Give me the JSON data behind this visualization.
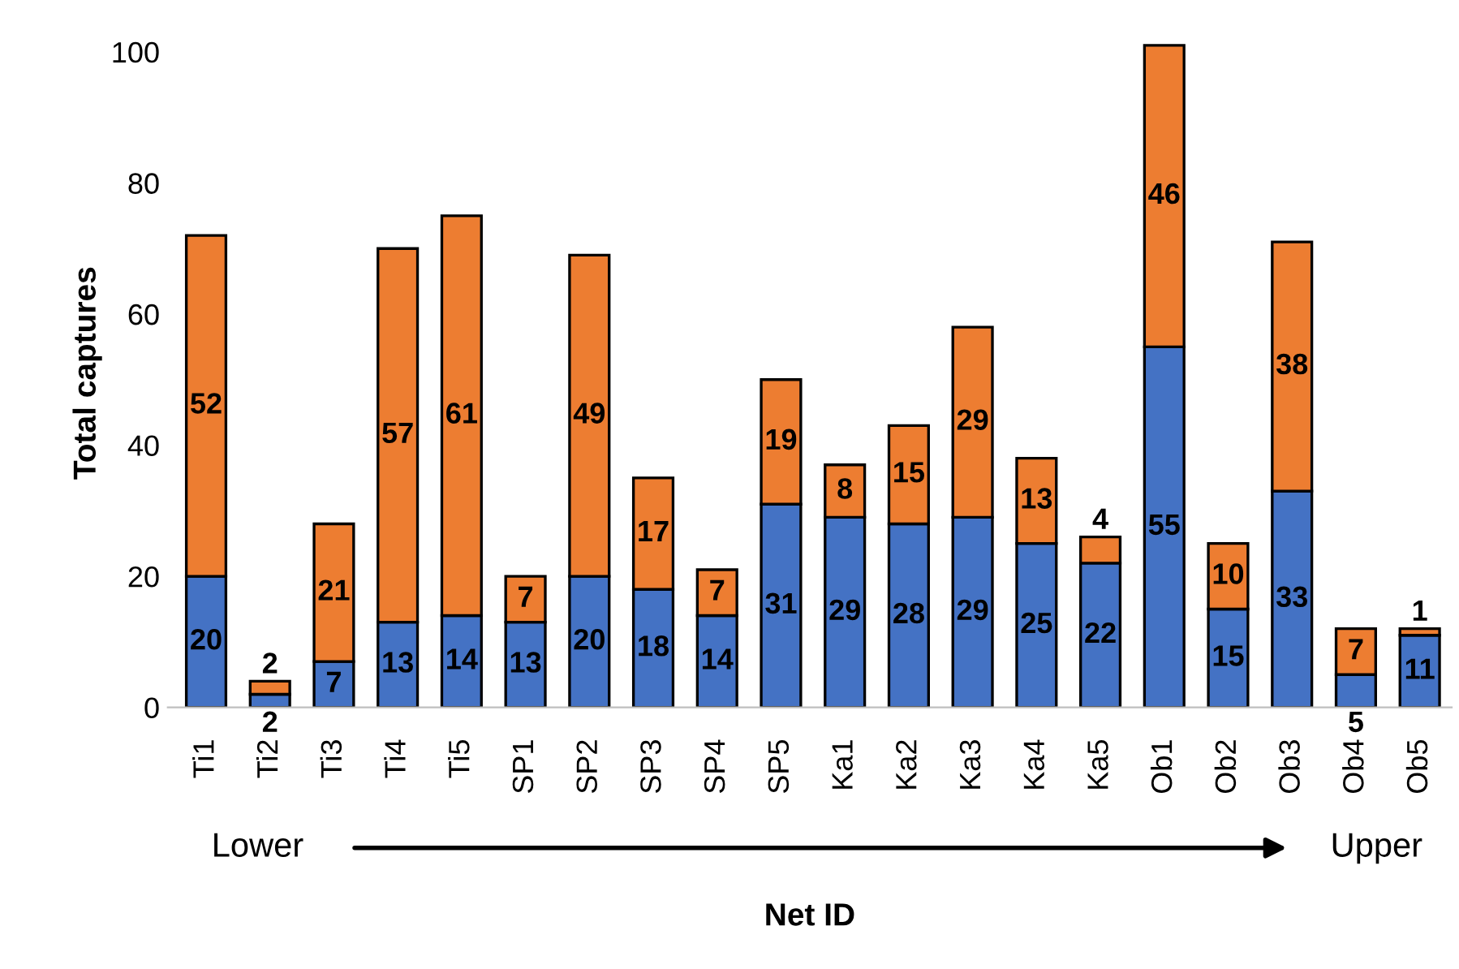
{
  "chart_data": {
    "type": "bar",
    "stacked": true,
    "xlabel": "Net ID",
    "ylabel": "Total captures",
    "categories": [
      "Ti1",
      "Ti2",
      "Ti3",
      "Ti4",
      "Ti5",
      "SP1",
      "SP2",
      "SP3",
      "SP4",
      "SP5",
      "Ka1",
      "Ka2",
      "Ka3",
      "Ka4",
      "Ka5",
      "Ob1",
      "Ob2",
      "Ob3",
      "Ob4",
      "Ob5"
    ],
    "series": [
      {
        "color": "#4472c4",
        "values": [
          20,
          2,
          7,
          13,
          14,
          13,
          20,
          18,
          14,
          31,
          29,
          28,
          29,
          25,
          22,
          55,
          15,
          33,
          5,
          11
        ]
      },
      {
        "color": "#ed7d31",
        "values": [
          52,
          2,
          21,
          57,
          61,
          7,
          49,
          17,
          7,
          19,
          8,
          15,
          29,
          13,
          4,
          46,
          10,
          38,
          7,
          1
        ]
      }
    ],
    "ylim": [
      0,
      102
    ],
    "yticks": [
      0,
      20,
      40,
      60,
      80,
      100
    ],
    "grid": false,
    "legend": false,
    "data_labels": true,
    "annotations": [
      "Lower",
      "Upper"
    ]
  }
}
